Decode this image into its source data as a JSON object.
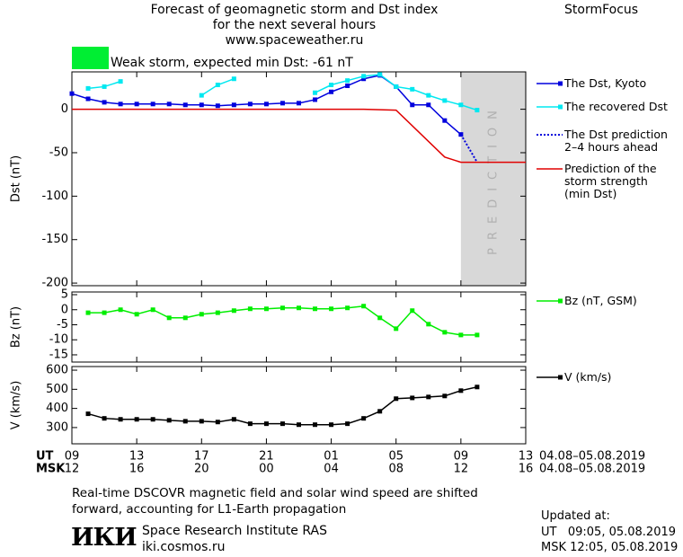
{
  "header": {
    "title": "Forecast of geomagnetic storm and Dst index\nfor the next several hours\nwww.spaceweather.ru",
    "brand": "StormFocus",
    "storm_label": "Weak storm, expected min Dst: -61 nT"
  },
  "chart_data": [
    {
      "type": "line",
      "ylabel": "Dst (nT)",
      "xlim": [
        0,
        28
      ],
      "ylim": [
        -203,
        43
      ],
      "yticks": [
        0,
        -50,
        -100,
        -150,
        -200
      ],
      "prediction_region": {
        "label": "PREDICTION",
        "x": [
          24,
          28
        ]
      },
      "series": [
        {
          "name": "The Dst, Kyoto",
          "color": "#0000dd",
          "marker": true,
          "line_style": "solid",
          "x": [
            0,
            1,
            2,
            3,
            4,
            5,
            6,
            7,
            8,
            9,
            10,
            11,
            12,
            13,
            14,
            15,
            16,
            17,
            18,
            19,
            20,
            21,
            22,
            23,
            24
          ],
          "values": [
            18,
            12,
            8,
            6,
            6,
            6,
            6,
            5,
            5,
            4,
            5,
            6,
            6,
            7,
            7,
            11,
            20,
            27,
            35,
            39,
            26,
            5,
            5,
            -13,
            -29
          ]
        },
        {
          "name": "The recovered Dst",
          "color": "#00e8f0",
          "marker": true,
          "line_style": "solid",
          "x": [
            1,
            2,
            3,
            4,
            5,
            6,
            7,
            8,
            9,
            10,
            11,
            12,
            13,
            14,
            15,
            16,
            17,
            18,
            19,
            20,
            21,
            22,
            23,
            24,
            25
          ],
          "values": [
            24,
            26,
            32,
            null,
            null,
            null,
            null,
            16,
            28,
            35,
            null,
            null,
            null,
            null,
            19,
            28,
            33,
            38,
            40,
            26,
            23,
            16,
            10,
            5,
            -1
          ]
        },
        {
          "name": "The Dst prediction\n2–4 hours ahead",
          "color": "#0000dd",
          "marker": false,
          "line_style": "dotted",
          "x": [
            24,
            24.5,
            25
          ],
          "values": [
            -29,
            -45,
            -61
          ]
        },
        {
          "name": "Prediction of the\nstorm strength\n(min Dst)",
          "color": "#e00000",
          "marker": false,
          "line_style": "solid",
          "x": [
            0,
            18,
            20,
            23,
            24,
            28
          ],
          "values": [
            0,
            0,
            -1,
            -55,
            -61,
            -61
          ]
        }
      ]
    },
    {
      "type": "line",
      "ylabel": "Bz (nT)",
      "xlim": [
        0,
        28
      ],
      "ylim": [
        -17.4,
        5.9
      ],
      "yticks": [
        5,
        0,
        -5,
        -10,
        -15
      ],
      "series": [
        {
          "name": "Bz (nT, GSM)",
          "color": "#00ee00",
          "marker": true,
          "line_style": "solid",
          "x": [
            1,
            2,
            3,
            4,
            5,
            6,
            7,
            8,
            9,
            10,
            11,
            12,
            13,
            14,
            15,
            16,
            17,
            18,
            19,
            20,
            21,
            22,
            23,
            24,
            25
          ],
          "values": [
            -1,
            -1,
            0,
            -1.5,
            0,
            -2.7,
            -2.7,
            -1.5,
            -1,
            -0.3,
            0.3,
            0.3,
            0.6,
            0.6,
            0.3,
            0.3,
            0.6,
            1.2,
            -2.7,
            -6.3,
            -0.3,
            -4.8,
            -7.5,
            -8.4,
            -8.4
          ]
        }
      ]
    },
    {
      "type": "line",
      "ylabel": "V (km/s)",
      "xlim": [
        0,
        28
      ],
      "ylim": [
        215,
        619
      ],
      "yticks": [
        600,
        500,
        400,
        300
      ],
      "xlabel": "UT",
      "xlabel_msk": "MSK",
      "date_range_ut": "04.08–05.08.2019",
      "date_range_msk": "04.08–05.08.2019",
      "xticks": [
        {
          "value": 0,
          "label": "09"
        },
        {
          "value": 4,
          "label": "13"
        },
        {
          "value": 8,
          "label": "17"
        },
        {
          "value": 12,
          "label": "21"
        },
        {
          "value": 16,
          "label": "01"
        },
        {
          "value": 20,
          "label": "05"
        },
        {
          "value": 24,
          "label": "09"
        },
        {
          "value": 28,
          "label": "13"
        }
      ],
      "xticks_msk": [
        {
          "value": 0,
          "label": "12"
        },
        {
          "value": 4,
          "label": "16"
        },
        {
          "value": 8,
          "label": "20"
        },
        {
          "value": 12,
          "label": "00"
        },
        {
          "value": 16,
          "label": "04"
        },
        {
          "value": 20,
          "label": "08"
        },
        {
          "value": 24,
          "label": "12"
        },
        {
          "value": 28,
          "label": "16"
        }
      ],
      "series": [
        {
          "name": "V (km/s)",
          "color": "#000000",
          "marker": true,
          "line_style": "solid",
          "x": [
            1,
            2,
            3,
            4,
            5,
            6,
            7,
            8,
            9,
            10,
            11,
            12,
            13,
            14,
            15,
            16,
            17,
            18,
            19,
            20,
            21,
            22,
            23,
            24,
            25
          ],
          "values": [
            372,
            348,
            343,
            343,
            343,
            338,
            333,
            333,
            329,
            343,
            320,
            320,
            320,
            315,
            315,
            315,
            320,
            348,
            385,
            451,
            455,
            460,
            465,
            493,
            512
          ]
        }
      ]
    }
  ],
  "footer": {
    "note": "Real-time DSCOVR magnetic field and solar wind speed are shifted\nforward, accounting for L1-Earth propagation",
    "logo": "ИКИ",
    "institute": "Space Research Institute RAS",
    "website": "iki.cosmos.ru",
    "updated_label": "Updated at:",
    "updated_ut": "UT   09:05, 05.08.2019",
    "updated_msk": "MSK 12:05, 05.08.2019"
  }
}
